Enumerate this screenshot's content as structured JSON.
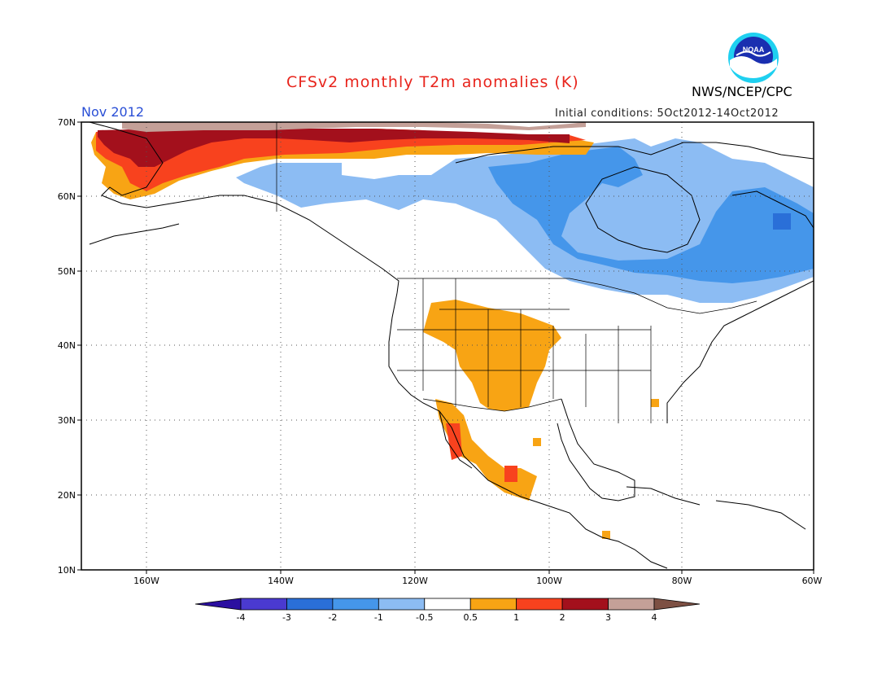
{
  "header": {
    "title": "CFSv2 monthly T2m anomalies (K)",
    "valid_period": "Nov 2012",
    "initial_conditions": "Initial conditions: 5Oct2012-14Oct2012",
    "organization": "NWS/NCEP/CPC",
    "logo_text": "NOAA"
  },
  "map": {
    "projection": "lat-lon",
    "lon_range": [
      -172,
      -60
    ],
    "lat_range": [
      10,
      70
    ],
    "grid": "dotted",
    "lat_labels": [
      "70N",
      "60N",
      "50N",
      "40N",
      "30N",
      "20N",
      "10N"
    ],
    "lon_labels": [
      "160W",
      "140W",
      "120W",
      "100W",
      "80W",
      "60W"
    ]
  },
  "colorbar": {
    "labels": [
      "-4",
      "-3",
      "-2",
      "-1",
      "-0.5",
      "0.5",
      "1",
      "2",
      "3",
      "4"
    ],
    "colors": [
      "#2b0fa0",
      "#4a3ad0",
      "#2a6fd8",
      "#4596ea",
      "#8cbcf3",
      "#ffffff",
      "#f8a414",
      "#f8421e",
      "#a3101c",
      "#c4a098",
      "#7d5043"
    ]
  },
  "anomaly_regions": [
    {
      "name": "alaska-warm-brown",
      "color": "#c4a098"
    },
    {
      "name": "alaska-warm-darkred",
      "color": "#a3101c"
    },
    {
      "name": "alaska-warm-red",
      "color": "#f8421e"
    },
    {
      "name": "alaska-warm-orange",
      "color": "#f8a414"
    },
    {
      "name": "canada-cold-lightblue",
      "color": "#8cbcf3"
    },
    {
      "name": "canada-cold-blue",
      "color": "#4596ea"
    },
    {
      "name": "us-west-warm-orange",
      "color": "#f8a414"
    },
    {
      "name": "mexico-warm-red",
      "color": "#f8421e"
    }
  ]
}
